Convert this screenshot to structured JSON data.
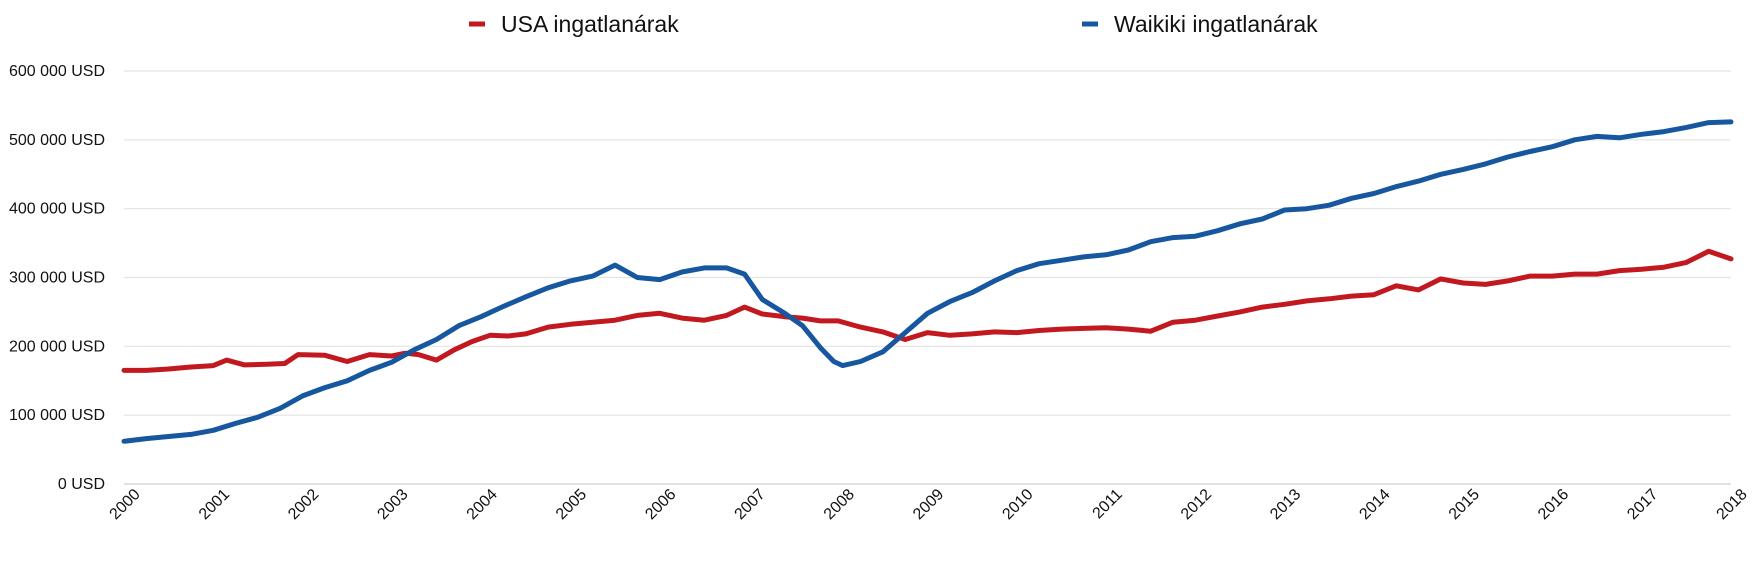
{
  "chart_data": {
    "type": "line",
    "title": "",
    "xlabel": "",
    "ylabel": "",
    "xlim": [
      2000,
      2018
    ],
    "ylim": [
      0,
      600000
    ],
    "grid": true,
    "legend_position": "top-center",
    "x_ticks": [
      2000,
      2001,
      2002,
      2003,
      2004,
      2005,
      2006,
      2007,
      2008,
      2009,
      2010,
      2011,
      2012,
      2013,
      2014,
      2015,
      2016,
      2017,
      2018
    ],
    "x_tick_labels": [
      "2000",
      "2001",
      "2002",
      "2003",
      "2004",
      "2005",
      "2006",
      "2007",
      "2008",
      "2009",
      "2010",
      "2011",
      "2012",
      "2013",
      "2014",
      "2015",
      "2016",
      "2017",
      "2018"
    ],
    "y_ticks": [
      0,
      100000,
      200000,
      300000,
      400000,
      500000,
      600000
    ],
    "y_tick_labels": [
      "0 USD",
      "100 000 USD",
      "200 000 USD",
      "300 000 USD",
      "400 000 USD",
      "500 000 USD",
      "600 000 USD"
    ],
    "series": [
      {
        "name": "USA ingatlanárak",
        "color": "#c1191f",
        "x": [
          2000.0,
          2000.25,
          2000.5,
          2000.75,
          2001.0,
          2001.15,
          2001.35,
          2001.6,
          2001.8,
          2001.95,
          2002.25,
          2002.5,
          2002.75,
          2003.0,
          2003.15,
          2003.3,
          2003.5,
          2003.7,
          2003.9,
          2004.1,
          2004.3,
          2004.5,
          2004.75,
          2005.0,
          2005.25,
          2005.5,
          2005.75,
          2006.0,
          2006.25,
          2006.5,
          2006.75,
          2006.95,
          2007.15,
          2007.4,
          2007.6,
          2007.8,
          2008.0,
          2008.25,
          2008.5,
          2008.75,
          2009.0,
          2009.25,
          2009.5,
          2009.75,
          2010.0,
          2010.25,
          2010.5,
          2010.75,
          2011.0,
          2011.25,
          2011.5,
          2011.75,
          2012.0,
          2012.25,
          2012.5,
          2012.75,
          2013.0,
          2013.25,
          2013.5,
          2013.75,
          2014.0,
          2014.25,
          2014.5,
          2014.75,
          2015.0,
          2015.25,
          2015.5,
          2015.75,
          2016.0,
          2016.25,
          2016.5,
          2016.75,
          2017.0,
          2017.25,
          2017.5,
          2017.75,
          2018.0
        ],
        "values": [
          165000,
          165000,
          167000,
          170000,
          172000,
          180000,
          173000,
          174000,
          175000,
          188000,
          187000,
          178000,
          188000,
          186000,
          190000,
          188000,
          180000,
          195000,
          207000,
          216000,
          215000,
          218000,
          228000,
          232000,
          235000,
          238000,
          245000,
          248000,
          241000,
          238000,
          245000,
          257000,
          247000,
          243000,
          241000,
          237000,
          237000,
          228000,
          221000,
          210000,
          220000,
          216000,
          218000,
          221000,
          220000,
          223000,
          225000,
          226000,
          227000,
          225000,
          222000,
          235000,
          238000,
          244000,
          250000,
          257000,
          261000,
          266000,
          269000,
          273000,
          275000,
          288000,
          282000,
          298000,
          292000,
          290000,
          295000,
          302000,
          302000,
          305000,
          305000,
          310000,
          312000,
          315000,
          322000,
          338000,
          327000
        ]
      },
      {
        "name": "Waikiki ingatlanárak",
        "color": "#1757a0",
        "x": [
          2000.0,
          2000.25,
          2000.5,
          2000.75,
          2001.0,
          2001.25,
          2001.5,
          2001.75,
          2002.0,
          2002.25,
          2002.5,
          2002.75,
          2003.0,
          2003.25,
          2003.5,
          2003.75,
          2004.0,
          2004.25,
          2004.5,
          2004.75,
          2005.0,
          2005.25,
          2005.5,
          2005.75,
          2006.0,
          2006.25,
          2006.5,
          2006.75,
          2006.95,
          2007.15,
          2007.4,
          2007.6,
          2007.8,
          2007.95,
          2008.05,
          2008.25,
          2008.5,
          2008.75,
          2009.0,
          2009.25,
          2009.5,
          2009.75,
          2010.0,
          2010.25,
          2010.5,
          2010.75,
          2011.0,
          2011.25,
          2011.5,
          2011.75,
          2012.0,
          2012.25,
          2012.5,
          2012.75,
          2013.0,
          2013.25,
          2013.5,
          2013.75,
          2014.0,
          2014.25,
          2014.5,
          2014.75,
          2015.0,
          2015.25,
          2015.5,
          2015.75,
          2016.0,
          2016.25,
          2016.5,
          2016.75,
          2017.0,
          2017.25,
          2017.5,
          2017.75,
          2018.0
        ],
        "values": [
          62000,
          66000,
          69000,
          72000,
          78000,
          88000,
          97000,
          110000,
          128000,
          140000,
          150000,
          165000,
          177000,
          195000,
          210000,
          230000,
          243000,
          258000,
          272000,
          285000,
          295000,
          302000,
          318000,
          300000,
          297000,
          308000,
          314000,
          314000,
          305000,
          268000,
          248000,
          230000,
          198000,
          178000,
          172000,
          178000,
          192000,
          220000,
          248000,
          265000,
          278000,
          295000,
          310000,
          320000,
          325000,
          330000,
          333000,
          340000,
          352000,
          358000,
          360000,
          368000,
          378000,
          385000,
          398000,
          400000,
          405000,
          415000,
          422000,
          432000,
          440000,
          450000,
          457000,
          465000,
          475000,
          483000,
          490000,
          500000,
          505000,
          503000,
          508000,
          512000,
          518000,
          525000,
          526000
        ]
      }
    ]
  }
}
